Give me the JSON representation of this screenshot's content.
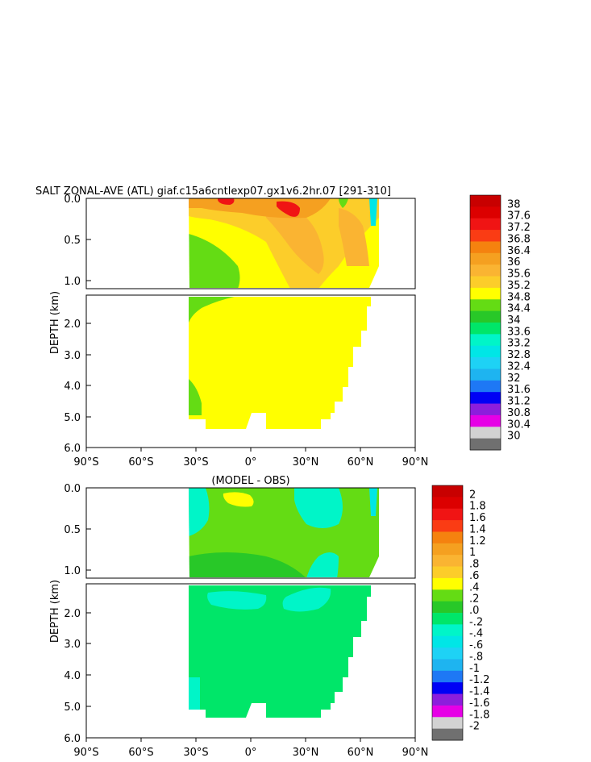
{
  "title": "SALT ZONAL-AVE (ATL) giaf.c15a6cntlexp07.gx1v6.2hr.07 [291-310]",
  "subtitle": "(MODEL - OBS)",
  "chart_data": [
    {
      "type": "heatmap",
      "title": "SALT ZONAL-AVE (ATL) giaf.c15a6cntlexp07.gx1v6.2hr.07 [291-310]",
      "ylabel": "DEPTH (km)",
      "xlabel": "",
      "x_ticks": [
        "90°S",
        "60°S",
        "30°S",
        "0°",
        "30°N",
        "60°N",
        "90°N"
      ],
      "x_tick_values": [
        -90,
        -60,
        -30,
        0,
        30,
        60,
        90
      ],
      "y_ticks_upper": [
        "0.0",
        "0.5",
        "1.0"
      ],
      "y_ticks_lower": [
        "2.0",
        "3.0",
        "4.0",
        "5.0",
        "6.0"
      ],
      "ylim_km": [
        6.0,
        0.0
      ],
      "colorbar": {
        "labels": [
          "38",
          "37.6",
          "37.2",
          "36.8",
          "36.4",
          "36",
          "35.6",
          "35.2",
          "34.8",
          "34.4",
          "34",
          "33.6",
          "33.2",
          "32.8",
          "32.4",
          "32",
          "31.6",
          "31.2",
          "30.8",
          "30.4",
          "30"
        ],
        "colors": [
          "#c80000",
          "#dc0000",
          "#f01414",
          "#fa3c14",
          "#f5820f",
          "#f5a020",
          "#fab432",
          "#fccd2a",
          "#ffff00",
          "#64dc14",
          "#28c828",
          "#00e669",
          "#00f5c8",
          "#00e6e6",
          "#1ed2f5",
          "#1eb4f0",
          "#1e78f5",
          "#0000f5",
          "#8c1edc",
          "#e600e6",
          "#d2d2d2",
          "#707070"
        ]
      }
    },
    {
      "type": "heatmap",
      "title": "(MODEL - OBS)",
      "ylabel": "DEPTH (km)",
      "xlabel": "",
      "x_ticks": [
        "90°S",
        "60°S",
        "30°S",
        "0°",
        "30°N",
        "60°N",
        "90°N"
      ],
      "x_tick_values": [
        -90,
        -60,
        -30,
        0,
        30,
        60,
        90
      ],
      "y_ticks_upper": [
        "0.0",
        "0.5",
        "1.0"
      ],
      "y_ticks_lower": [
        "2.0",
        "3.0",
        "4.0",
        "5.0",
        "6.0"
      ],
      "ylim_km": [
        6.0,
        0.0
      ],
      "colorbar": {
        "labels": [
          "2",
          "1.8",
          "1.6",
          "1.4",
          "1.2",
          "1",
          ".8",
          ".6",
          ".4",
          ".2",
          ".0",
          "-.2",
          "-.4",
          "-.6",
          "-.8",
          "-1",
          "-1.2",
          "-1.4",
          "-1.6",
          "-1.8",
          "-2"
        ],
        "colors": [
          "#c80000",
          "#dc0000",
          "#f01414",
          "#fa3c14",
          "#f5820f",
          "#f5a020",
          "#fab432",
          "#fccd2a",
          "#ffff00",
          "#64dc14",
          "#28c828",
          "#00e669",
          "#00f5c8",
          "#00e6e6",
          "#1ed2f5",
          "#1eb4f0",
          "#1e78f5",
          "#0000f5",
          "#8c1edc",
          "#e600e6",
          "#d2d2d2",
          "#707070"
        ]
      }
    }
  ]
}
